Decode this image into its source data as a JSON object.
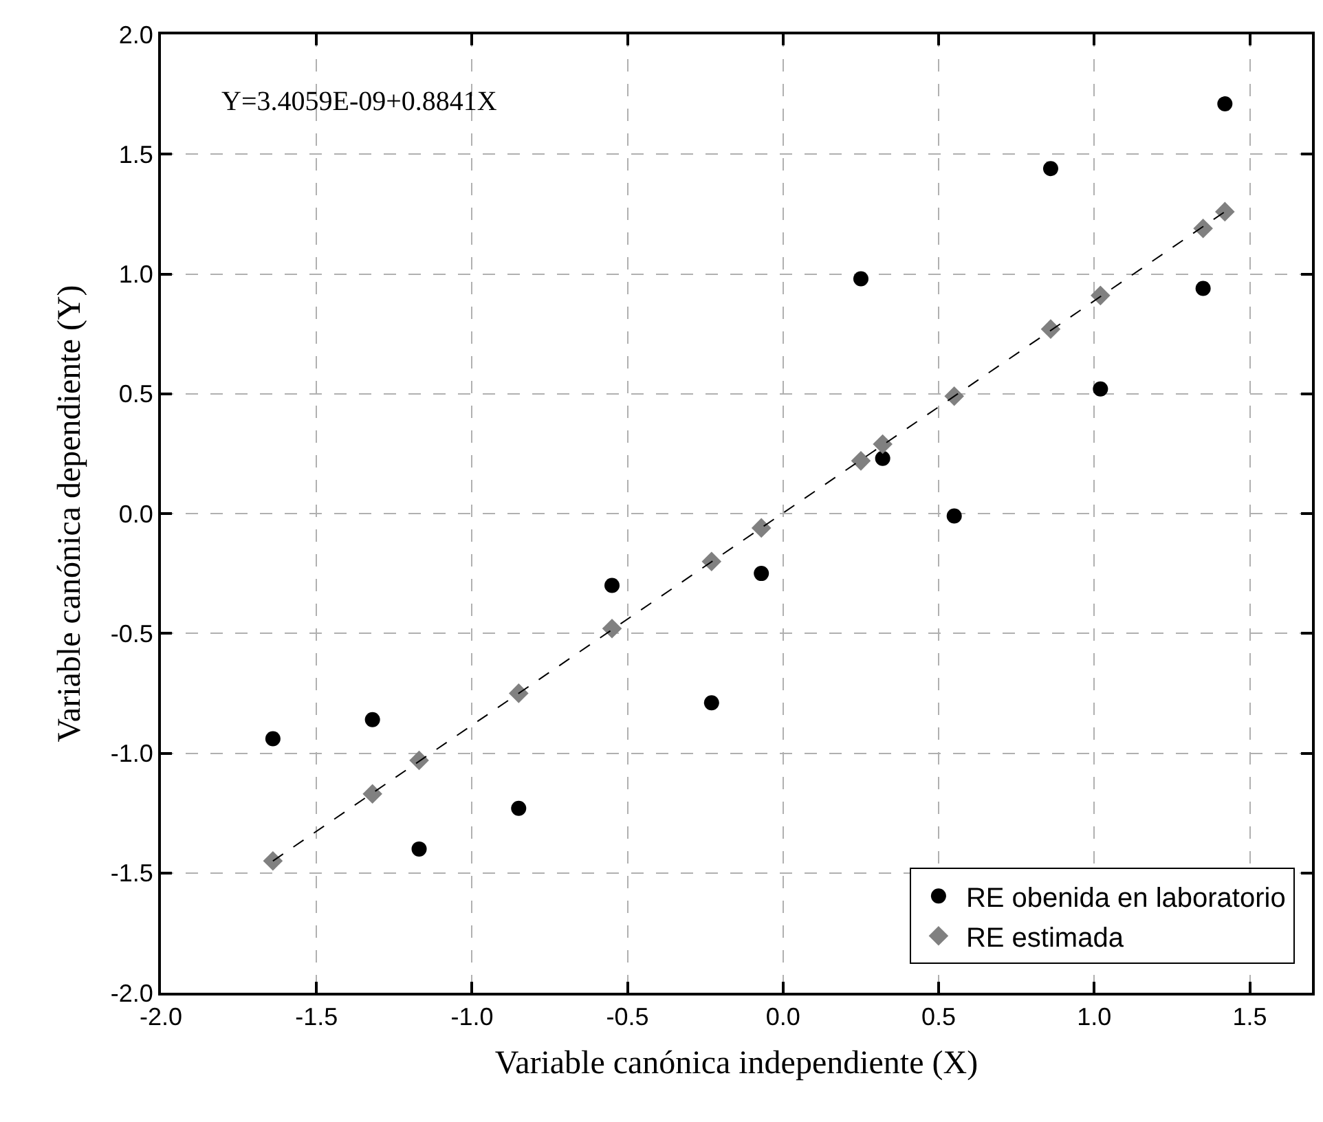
{
  "chart_data": {
    "type": "scatter",
    "xlabel": "Variable canónica independiente (X)",
    "ylabel": "Variable canónica dependiente (Y)",
    "annotations": [
      "Y=3.4059E-09+0.8841X"
    ],
    "x": [
      -1.64,
      -1.32,
      -1.17,
      -0.85,
      -0.55,
      -0.23,
      -0.07,
      0.25,
      0.32,
      0.55,
      0.86,
      1.02,
      1.35,
      1.42
    ],
    "series": [
      {
        "name": "RE obenida en laboratorio",
        "color": "#000000",
        "marker": "circle",
        "values": [
          -0.94,
          -0.86,
          -1.4,
          -1.23,
          -0.3,
          -0.79,
          -0.25,
          0.98,
          0.23,
          -0.01,
          1.44,
          0.52,
          0.94,
          1.71
        ]
      },
      {
        "name": "RE estimada",
        "color": "#808080",
        "marker": "diamond",
        "values": [
          -1.45,
          -1.17,
          -1.03,
          -0.75,
          -0.48,
          -0.2,
          -0.06,
          0.22,
          0.29,
          0.49,
          0.77,
          0.91,
          1.19,
          1.26
        ]
      },
      {
        "type": "line",
        "color": "#000000",
        "line_style": "dashed",
        "marker": "none",
        "x": [
          -1.64,
          1.42
        ],
        "values": [
          -1.45,
          1.26
        ]
      }
    ],
    "xlim": [
      -2.0,
      1.7
    ],
    "xticks": [
      {
        "value": -2,
        "label": "-2.0"
      },
      -1.5,
      {
        "value": -1,
        "label": "-1.0"
      },
      -0.5,
      {
        "value": 0,
        "label": "0.0"
      },
      0.5,
      {
        "value": 1,
        "label": "1.0"
      },
      1.5
    ],
    "ylim": [
      -2.0,
      2.0
    ],
    "yticks": [
      {
        "value": -2,
        "label": "-2.0"
      },
      -1.5,
      {
        "value": -1,
        "label": "-1.0"
      },
      -0.5,
      {
        "value": 0,
        "label": "0.0"
      },
      0.5,
      {
        "value": 1,
        "label": "1.0"
      },
      1.5,
      {
        "value": 2,
        "label": "2.0"
      }
    ],
    "grid": true,
    "legend": "bottom right"
  }
}
